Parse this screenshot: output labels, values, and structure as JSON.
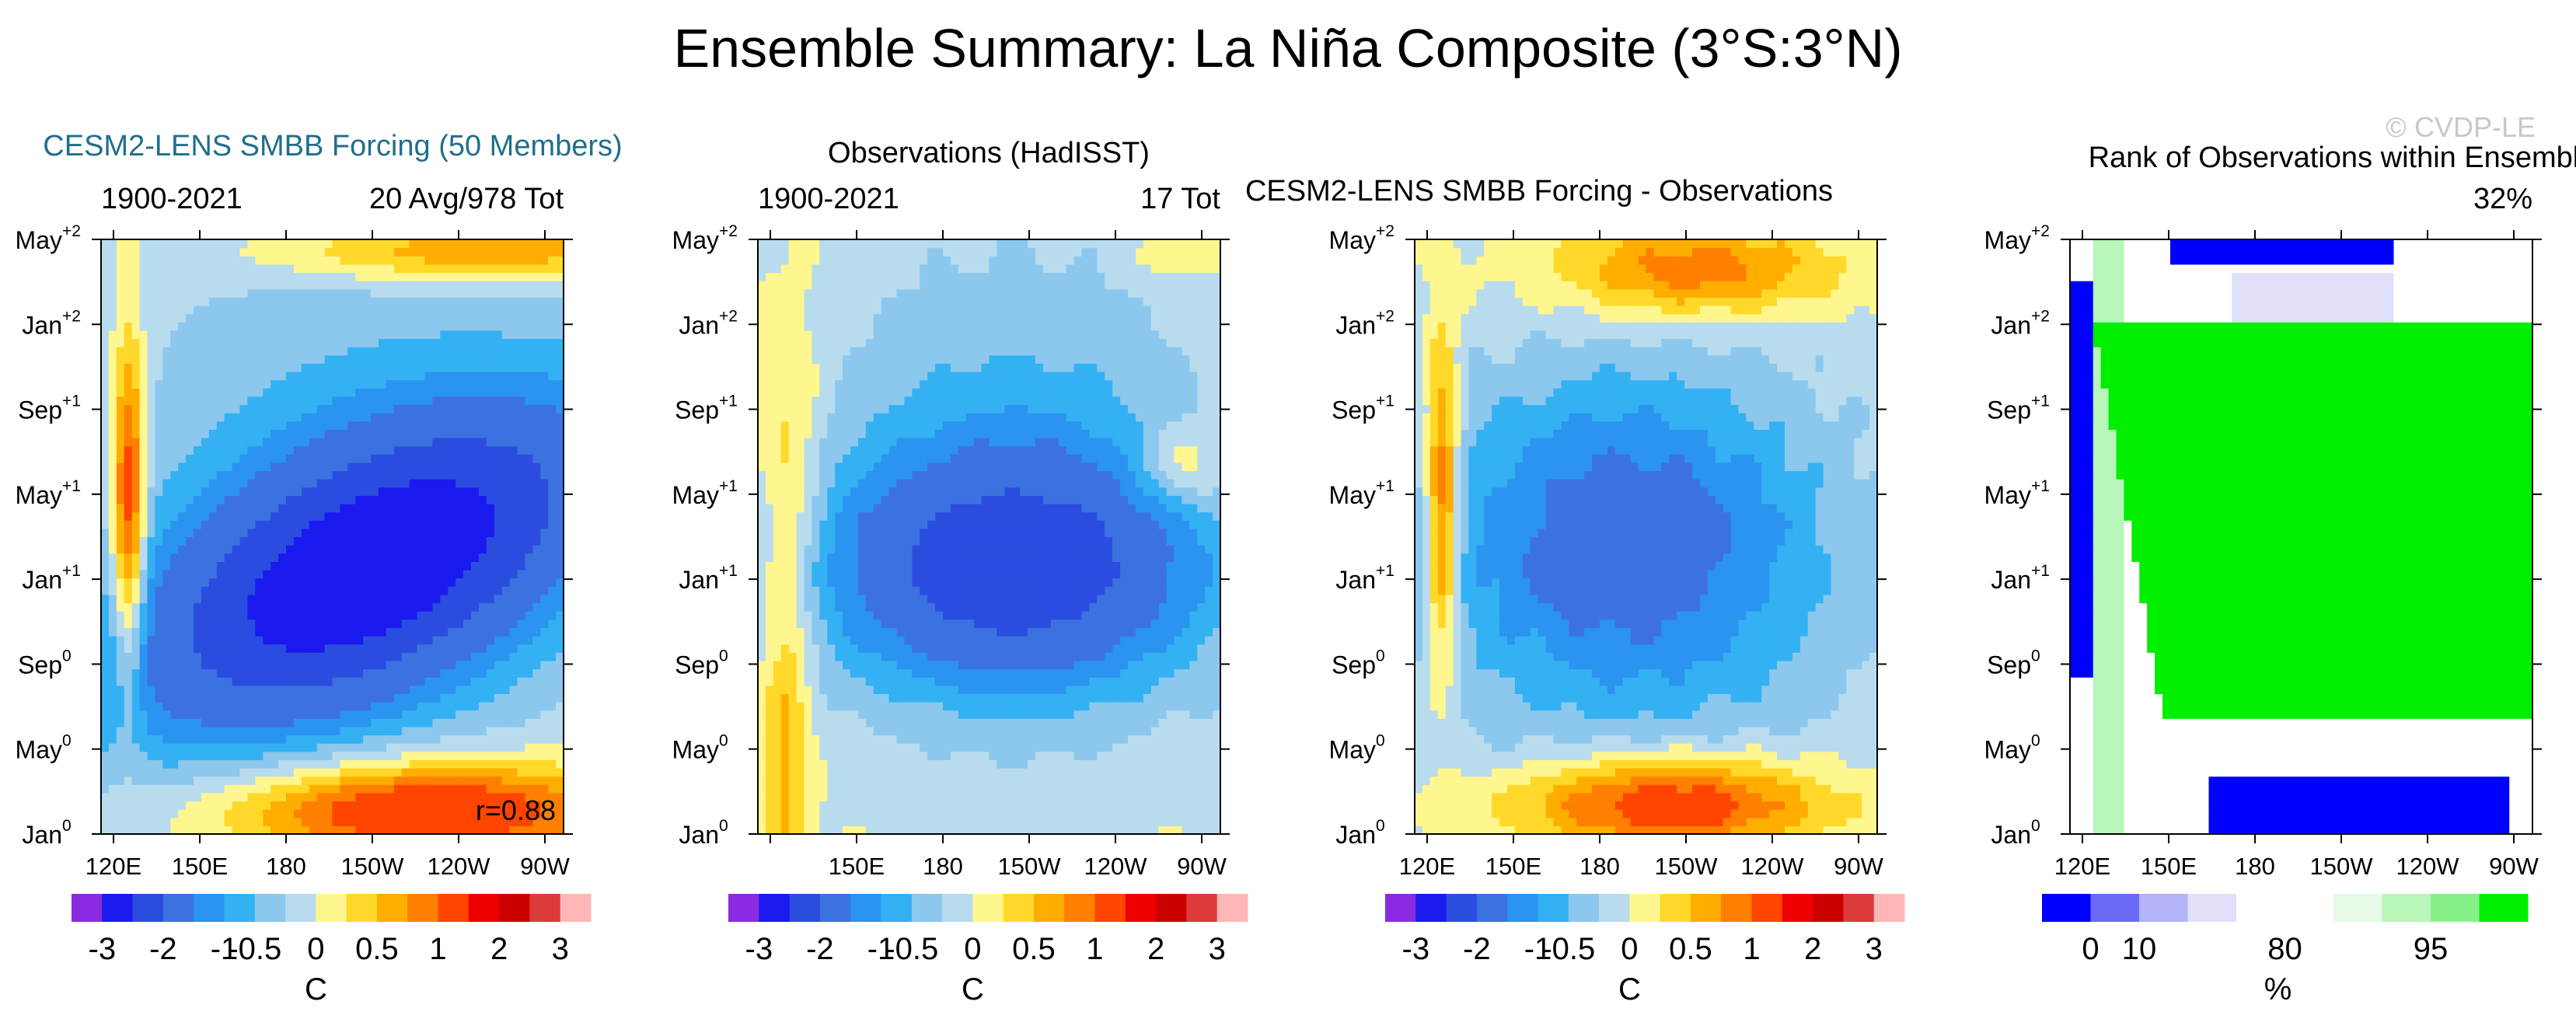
{
  "figure": {
    "title": "Ensemble Summary: La Niña Composite (3°S:3°N)",
    "watermark": "© CVDP-LE"
  },
  "chart_data": [
    {
      "type": "heatmap",
      "title": "CESM2-LENS SMBB Forcing (50 Members)",
      "title_color": "#1f6f8b",
      "left_label": "1900-2021",
      "right_label": "20 Avg/978 Tot",
      "annotation": "r=0.88",
      "field": "model",
      "x_ticks": [
        "120E",
        "150E",
        "180",
        "150W",
        "120W",
        "90W"
      ],
      "y_ticks": [
        "Jan",
        "May",
        "Sep",
        "Jan",
        "May",
        "Sep",
        "Jan",
        "May"
      ],
      "y_tick_sups": [
        "0",
        "0",
        "0",
        "+1",
        "+1",
        "+1",
        "+2",
        "+2"
      ],
      "colorbar": {
        "labels": [
          "-3",
          "-2",
          "-1",
          "-0.5",
          "0",
          "0.5",
          "1",
          "2",
          "3"
        ],
        "unit": "C"
      }
    },
    {
      "type": "heatmap",
      "title": "Observations (HadISST)",
      "title_color": "#000000",
      "left_label": "1900-2021",
      "right_label": "17 Tot",
      "annotation": "",
      "field": "obs",
      "x_ticks": [
        "",
        "150E",
        "180",
        "150W",
        "120W",
        "90W"
      ],
      "y_ticks": [
        "Jan",
        "May",
        "Sep",
        "Jan",
        "May",
        "Sep",
        "Jan",
        "May"
      ],
      "y_tick_sups": [
        "0",
        "0",
        "0",
        "+1",
        "+1",
        "+1",
        "+2",
        "+2"
      ],
      "colorbar": {
        "labels": [
          "-3",
          "-2",
          "-1",
          "-0.5",
          "0",
          "0.5",
          "1",
          "2",
          "3"
        ],
        "unit": "C"
      }
    },
    {
      "type": "heatmap",
      "title": "CESM2-LENS SMBB Forcing - Observations",
      "title_color": "#000000",
      "left_label": "",
      "right_label": "",
      "annotation": "",
      "field": "diff",
      "x_ticks": [
        "120E",
        "150E",
        "180",
        "150W",
        "120W",
        "90W"
      ],
      "y_ticks": [
        "Jan",
        "May",
        "Sep",
        "Jan",
        "May",
        "Sep",
        "Jan",
        "May"
      ],
      "y_tick_sups": [
        "0",
        "0",
        "0",
        "+1",
        "+1",
        "+1",
        "+2",
        "+2"
      ],
      "colorbar": {
        "labels": [
          "-3",
          "-2",
          "-1",
          "-0.5",
          "0",
          "0.5",
          "1",
          "2",
          "3"
        ],
        "unit": "C"
      }
    },
    {
      "type": "heatmap",
      "title": "Rank of Observations within Ensemble",
      "title_color": "#000000",
      "left_label": "",
      "right_label": "32%",
      "annotation": "",
      "field": "rank",
      "x_ticks": [
        "120E",
        "150E",
        "180",
        "150W",
        "120W",
        "90W"
      ],
      "y_ticks": [
        "Jan",
        "May",
        "Sep",
        "Jan",
        "May",
        "Sep",
        "Jan",
        "May"
      ],
      "y_tick_sups": [
        "0",
        "0",
        "0",
        "+1",
        "+1",
        "+1",
        "+2",
        "+2"
      ],
      "colorbar": {
        "labels": [
          "0",
          "10",
          "80",
          "95"
        ],
        "unit": "%"
      }
    }
  ],
  "palettes": {
    "sst": [
      "#8a2be2",
      "#1a1aee",
      "#2a4de0",
      "#3c72e0",
      "#2b93f0",
      "#33b1f2",
      "#8cc7ee",
      "#b8dcee",
      "#fff68f",
      "#ffd829",
      "#ffae00",
      "#ff7f00",
      "#ff4500",
      "#ee0000",
      "#cd0000",
      "#dd3a3a",
      "#ffb6b6"
    ],
    "rank": [
      "#0000ff",
      "#6a6af5",
      "#b3b3f8",
      "#e0e0fa",
      "#ffffff",
      "#ffffff",
      "#e6fae6",
      "#b8f5b8",
      "#88f088",
      "#00ee00"
    ]
  }
}
